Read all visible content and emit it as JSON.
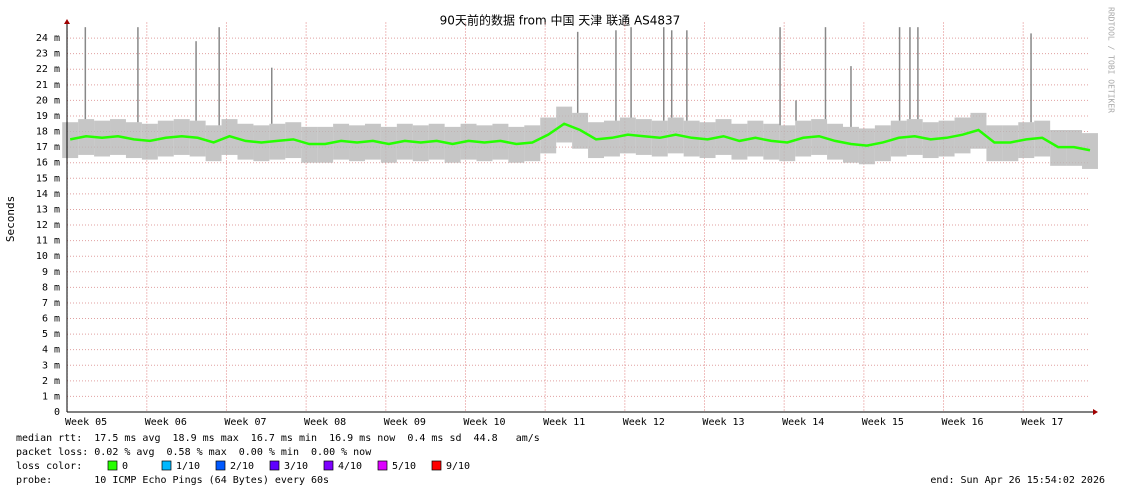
{
  "chart_data": {
    "type": "smokeping",
    "title": "90天前的数据 from 中国 天津 联通 AS4837",
    "y_label": "Seconds",
    "side_label": "RRDTOOL / TOBI OETIKER",
    "ylim": [
      0,
      0.025
    ],
    "yticks": [
      {
        "value": 0,
        "label": "0"
      },
      {
        "value": 0.001,
        "label": "1 m"
      },
      {
        "value": 0.002,
        "label": "2 m"
      },
      {
        "value": 0.003,
        "label": "3 m"
      },
      {
        "value": 0.004,
        "label": "4 m"
      },
      {
        "value": 0.005,
        "label": "5 m"
      },
      {
        "value": 0.006,
        "label": "6 m"
      },
      {
        "value": 0.007,
        "label": "7 m"
      },
      {
        "value": 0.008,
        "label": "8 m"
      },
      {
        "value": 0.009,
        "label": "9 m"
      },
      {
        "value": 0.01,
        "label": "10 m"
      },
      {
        "value": 0.011,
        "label": "11 m"
      },
      {
        "value": 0.012,
        "label": "12 m"
      },
      {
        "value": 0.013,
        "label": "13 m"
      },
      {
        "value": 0.014,
        "label": "14 m"
      },
      {
        "value": 0.015,
        "label": "15 m"
      },
      {
        "value": 0.016,
        "label": "16 m"
      },
      {
        "value": 0.017,
        "label": "17 m"
      },
      {
        "value": 0.018,
        "label": "18 m"
      },
      {
        "value": 0.019,
        "label": "19 m"
      },
      {
        "value": 0.02,
        "label": "20 m"
      },
      {
        "value": 0.021,
        "label": "21 m"
      },
      {
        "value": 0.022,
        "label": "22 m"
      },
      {
        "value": 0.023,
        "label": "23 m"
      },
      {
        "value": 0.024,
        "label": "24 m"
      }
    ],
    "xlim": [
      4.76,
      17.6
    ],
    "xticks": [
      {
        "value": 5,
        "label": "Week 05"
      },
      {
        "value": 6,
        "label": "Week 06"
      },
      {
        "value": 7,
        "label": "Week 07"
      },
      {
        "value": 8,
        "label": "Week 08"
      },
      {
        "value": 9,
        "label": "Week 09"
      },
      {
        "value": 10,
        "label": "Week 10"
      },
      {
        "value": 11,
        "label": "Week 11"
      },
      {
        "value": 12,
        "label": "Week 12"
      },
      {
        "value": 13,
        "label": "Week 13"
      },
      {
        "value": 14,
        "label": "Week 14"
      },
      {
        "value": 15,
        "label": "Week 15"
      },
      {
        "value": 16,
        "label": "Week 16"
      },
      {
        "value": 17,
        "label": "Week 17"
      }
    ],
    "x": [
      4.8,
      5.0,
      5.2,
      5.4,
      5.6,
      5.8,
      6.0,
      6.2,
      6.4,
      6.6,
      6.8,
      7.0,
      7.2,
      7.4,
      7.6,
      7.8,
      8.0,
      8.2,
      8.4,
      8.6,
      8.8,
      9.0,
      9.2,
      9.4,
      9.6,
      9.8,
      10.0,
      10.2,
      10.4,
      10.6,
      10.8,
      11.0,
      11.2,
      11.4,
      11.6,
      11.8,
      12.0,
      12.2,
      12.4,
      12.6,
      12.8,
      13.0,
      13.2,
      13.4,
      13.6,
      13.8,
      14.0,
      14.2,
      14.4,
      14.6,
      14.8,
      15.0,
      15.2,
      15.4,
      15.6,
      15.8,
      16.0,
      16.2,
      16.4,
      16.6,
      16.8,
      17.0,
      17.2,
      17.4,
      17.6
    ],
    "median": [
      0.0175,
      0.0177,
      0.0176,
      0.0177,
      0.0175,
      0.0174,
      0.0176,
      0.0177,
      0.0176,
      0.0173,
      0.0177,
      0.0174,
      0.0173,
      0.0174,
      0.0175,
      0.0172,
      0.0172,
      0.0174,
      0.0173,
      0.0174,
      0.0172,
      0.0174,
      0.0173,
      0.0174,
      0.0172,
      0.0174,
      0.0173,
      0.0174,
      0.0172,
      0.0173,
      0.0178,
      0.0185,
      0.0181,
      0.0175,
      0.0176,
      0.0178,
      0.0177,
      0.0176,
      0.0178,
      0.0176,
      0.0175,
      0.0177,
      0.0174,
      0.0176,
      0.0174,
      0.0173,
      0.0176,
      0.0177,
      0.0174,
      0.0172,
      0.0171,
      0.0173,
      0.0176,
      0.0177,
      0.0175,
      0.0176,
      0.0178,
      0.0181,
      0.0173,
      0.0173,
      0.0175,
      0.0176,
      0.017,
      0.017,
      0.0168
    ],
    "band_low": [
      0.0163,
      0.0165,
      0.0164,
      0.0165,
      0.0163,
      0.0162,
      0.0164,
      0.0165,
      0.0164,
      0.0161,
      0.0165,
      0.0162,
      0.0161,
      0.0162,
      0.0163,
      0.016,
      0.016,
      0.0162,
      0.0161,
      0.0162,
      0.016,
      0.0162,
      0.0161,
      0.0162,
      0.016,
      0.0162,
      0.0161,
      0.0162,
      0.016,
      0.0161,
      0.0166,
      0.0173,
      0.0169,
      0.0163,
      0.0164,
      0.0166,
      0.0165,
      0.0164,
      0.0166,
      0.0164,
      0.0163,
      0.0165,
      0.0162,
      0.0164,
      0.0162,
      0.0161,
      0.0164,
      0.0165,
      0.0162,
      0.016,
      0.0159,
      0.0161,
      0.0164,
      0.0165,
      0.0163,
      0.0164,
      0.0166,
      0.0169,
      0.0161,
      0.0161,
      0.0163,
      0.0164,
      0.0158,
      0.0158,
      0.0156
    ],
    "band_high": [
      0.0186,
      0.0188,
      0.0187,
      0.0188,
      0.0186,
      0.0185,
      0.0187,
      0.0188,
      0.0187,
      0.0184,
      0.0188,
      0.0185,
      0.0184,
      0.0185,
      0.0186,
      0.0183,
      0.0183,
      0.0185,
      0.0184,
      0.0185,
      0.0183,
      0.0185,
      0.0184,
      0.0185,
      0.0183,
      0.0185,
      0.0184,
      0.0185,
      0.0183,
      0.0184,
      0.0189,
      0.0196,
      0.0192,
      0.0186,
      0.0187,
      0.0189,
      0.0188,
      0.0187,
      0.0189,
      0.0187,
      0.0186,
      0.0188,
      0.0185,
      0.0187,
      0.0185,
      0.0184,
      0.0187,
      0.0188,
      0.0185,
      0.0183,
      0.0182,
      0.0184,
      0.0187,
      0.0188,
      0.0186,
      0.0187,
      0.0189,
      0.0192,
      0.0184,
      0.0184,
      0.0186,
      0.0187,
      0.0181,
      0.0181,
      0.0179
    ],
    "spikes": {
      "x": [
        4.99,
        5.65,
        6.38,
        6.67,
        7.33,
        11.17,
        11.65,
        11.84,
        12.25,
        12.35,
        12.54,
        13.71,
        13.91,
        14.28,
        14.6,
        15.21,
        15.34,
        15.44,
        16.86
      ],
      "values": [
        0.0247,
        0.0247,
        0.0238,
        0.0247,
        0.0221,
        0.0244,
        0.0245,
        0.0247,
        0.0247,
        0.0245,
        0.0245,
        0.0247,
        0.02,
        0.0247,
        0.0222,
        0.0247,
        0.0247,
        0.0247,
        0.0243
      ]
    },
    "median_color": "#26ff00",
    "legend_lines": [
      "median rtt:  17.5 ms avg  18.9 ms max  16.7 ms min  16.9 ms now  0.4 ms sd  44.8   am/s",
      "packet loss: 0.02 % avg  0.58 % max  0.00 % min  0.00 % now"
    ],
    "loss_label": "loss color:",
    "loss_colors": [
      {
        "label": "0",
        "color": "#26ff00"
      },
      {
        "label": "1/10",
        "color": "#00b8ff"
      },
      {
        "label": "2/10",
        "color": "#0059ff"
      },
      {
        "label": "3/10",
        "color": "#5e00ff"
      },
      {
        "label": "4/10",
        "color": "#7e00ff"
      },
      {
        "label": "5/10",
        "color": "#dd00ff"
      },
      {
        "label": "9/10",
        "color": "#ff0000"
      }
    ],
    "probe": "probe:       10 ICMP Echo Pings (64 Bytes) every 60s",
    "end": "end: Sun Apr 26 15:54:02 2026"
  }
}
